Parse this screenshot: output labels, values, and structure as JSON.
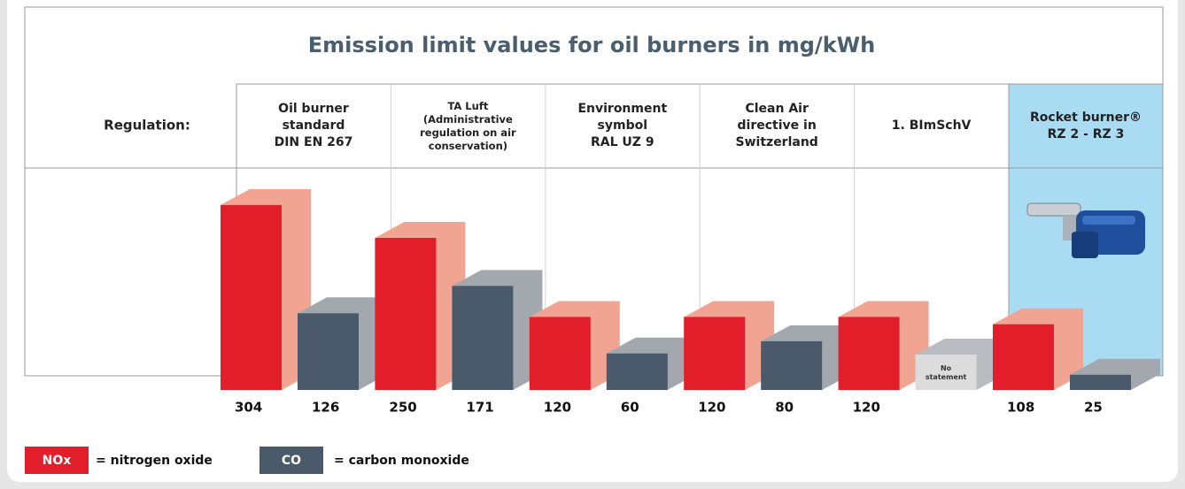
{
  "chart_data": {
    "type": "bar3d",
    "title": "Emission limit values for oil burners in mg/kWh",
    "row_label": "Regulation:",
    "categories": [
      "Oil burner\nstandard\nDIN EN 267",
      "TA Luft\n(Administrative\nregulation on air\nconservation)",
      "Environment\nsymbol\nRAL UZ 9",
      "Clean Air\ndirective in\nSwitzerland",
      "1. BImSchV",
      "Rocket burner®\nRZ 2 - RZ 3"
    ],
    "highlight_category": 5,
    "highlight_color": "#a9dcf3",
    "series": [
      {
        "name": "NOx",
        "description": "= nitrogen oxide",
        "color": "#e31e2b",
        "shade": "#f2a493",
        "values": [
          304,
          250,
          120,
          120,
          120,
          108
        ]
      },
      {
        "name": "CO",
        "description": "= carbon monoxide",
        "color": "#4a5a6a",
        "shade": "#a3a8ae",
        "values": [
          126,
          171,
          60,
          80,
          null,
          25
        ],
        "value_labels": [
          "126",
          "171",
          "60",
          "80",
          "No statement",
          "25"
        ]
      }
    ]
  }
}
